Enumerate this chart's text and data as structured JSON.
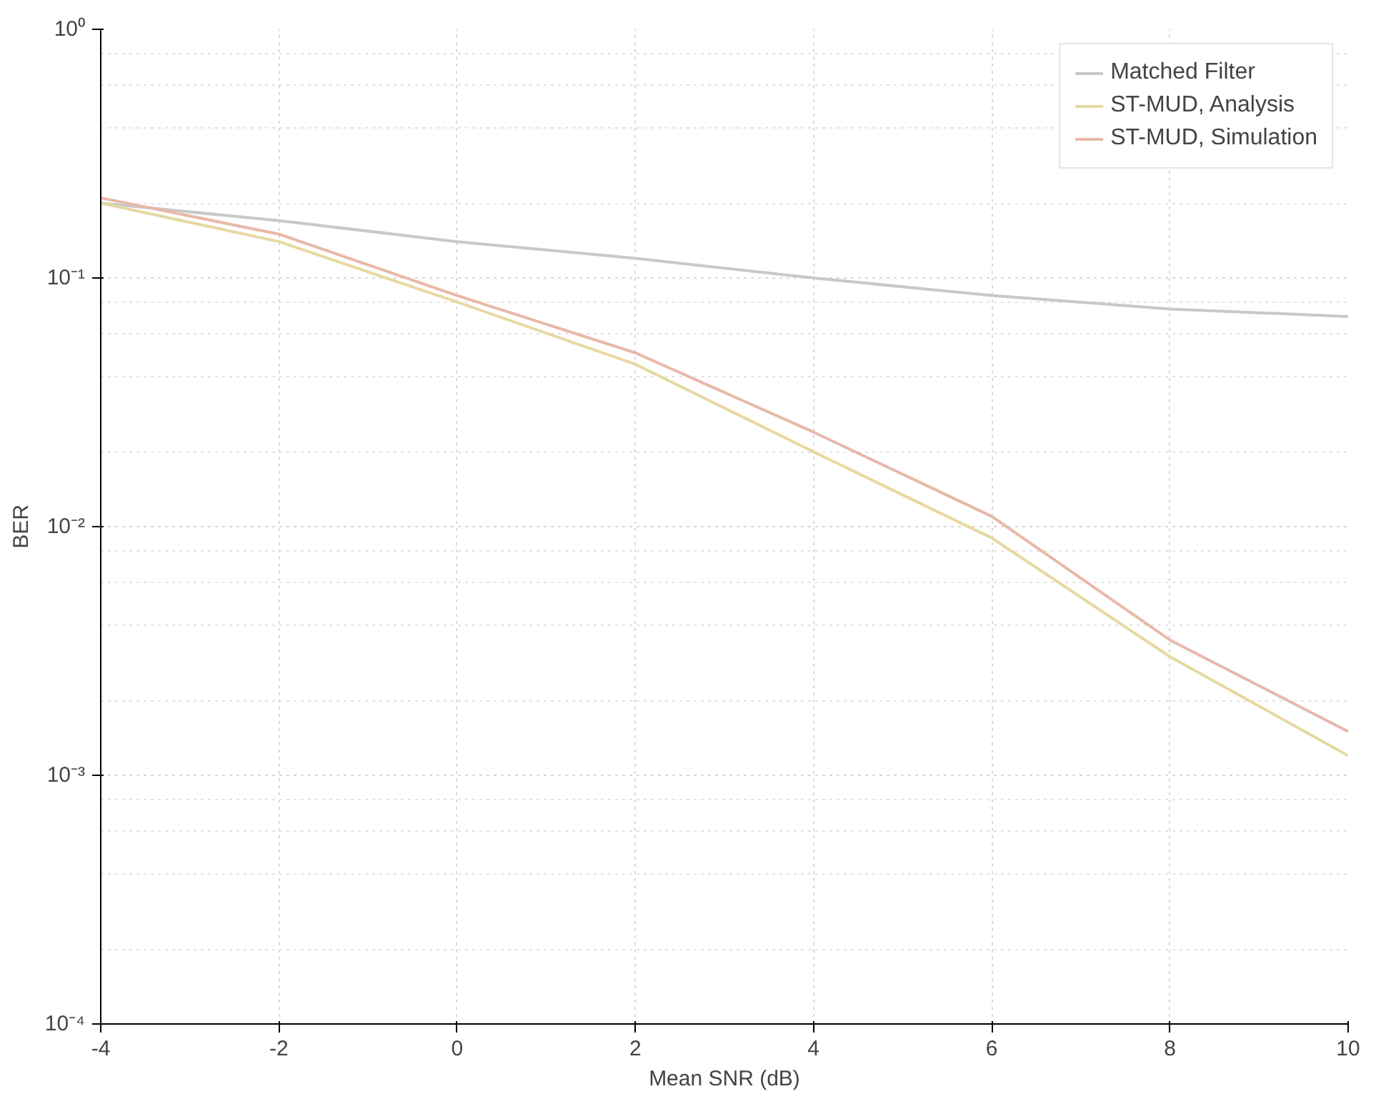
{
  "chart_data": {
    "type": "line",
    "xlabel": "Mean SNR (dB)",
    "ylabel": "BER",
    "log": "y",
    "grid": true,
    "legend": "top right",
    "line_style": "solid",
    "x": [
      -4,
      -2,
      0,
      2,
      4,
      6,
      8,
      10
    ],
    "xlim": [
      -4,
      10
    ],
    "xticks": [
      -4,
      -2,
      0,
      2,
      4,
      6,
      8,
      10
    ],
    "ylim": [
      0.0001,
      1
    ],
    "yticks": [
      {
        "value": 0.0001,
        "label": "10⁻⁴"
      },
      {
        "value": 0.001,
        "label": "10⁻³"
      },
      {
        "value": 0.01,
        "label": "10⁻²"
      },
      {
        "value": 0.1,
        "label": "10⁻¹"
      },
      {
        "value": 1,
        "label": "10⁰"
      }
    ],
    "series": [
      {
        "name": "Matched Filter",
        "color": "#c8c8c8",
        "values": [
          0.2,
          0.17,
          0.14,
          0.12,
          0.1,
          0.085,
          0.075,
          0.07
        ]
      },
      {
        "name": "ST-MUD, Analysis",
        "color": "#e6d9a0",
        "values": [
          0.2,
          0.14,
          0.08,
          0.045,
          0.02,
          0.009,
          0.003,
          0.0012
        ]
      },
      {
        "name": "ST-MUD, Simulation",
        "color": "#e8b8a8",
        "values": [
          0.21,
          0.15,
          0.085,
          0.05,
          0.024,
          0.011,
          0.0035,
          0.0015
        ]
      }
    ]
  }
}
